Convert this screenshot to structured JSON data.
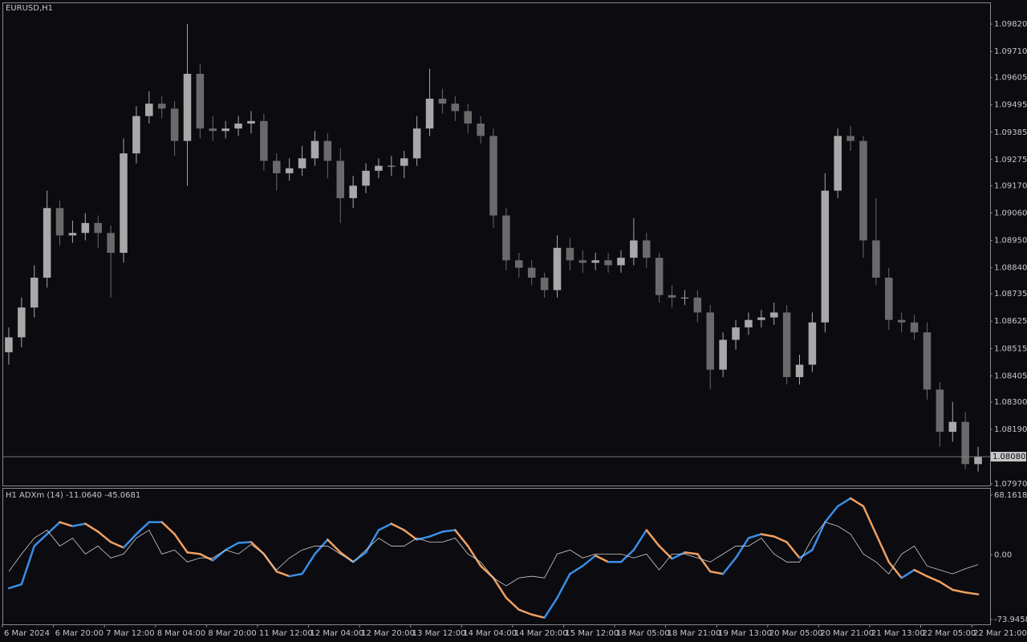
{
  "chart_data": [
    {
      "type": "candlestick",
      "title": "EURUSD,H1",
      "categories": [
        "6 Mar 2024",
        null,
        null,
        null,
        "6 Mar 20:00",
        null,
        null,
        null,
        "7 Mar 12:00",
        null,
        null,
        null,
        "8 Mar 04:00",
        null,
        null,
        null,
        "8 Mar 20:00",
        null,
        null,
        null,
        "11 Mar 12:00",
        null,
        null,
        null,
        "12 Mar 04:00",
        null,
        null,
        null,
        "12 Mar 20:00",
        null,
        null,
        null,
        "13 Mar 12:00",
        null,
        null,
        null,
        "14 Mar 04:00",
        null,
        null,
        null,
        "14 Mar 20:00",
        null,
        null,
        null,
        "15 Mar 12:00",
        null,
        null,
        null,
        "18 Mar 05:00",
        null,
        null,
        null,
        "18 Mar 21:00",
        null,
        null,
        null,
        "19 Mar 13:00",
        null,
        null,
        null,
        "20 Mar 05:00",
        null,
        null,
        null,
        "20 Mar 21:00",
        null,
        null,
        null,
        "21 Mar 13:00",
        null,
        null,
        null,
        "22 Mar 05:00",
        null,
        null,
        null,
        "22 Mar 21:00"
      ],
      "open": [
        1.085,
        1.0856,
        1.0868,
        1.088,
        1.0908,
        1.0897,
        1.0898,
        1.0902,
        1.0898,
        1.089,
        1.093,
        1.0945,
        1.095,
        1.0948,
        1.0935,
        1.0962,
        1.094,
        1.0939,
        1.094,
        1.0942,
        1.0943,
        1.0927,
        1.0922,
        1.0924,
        1.0928,
        1.0935,
        1.0927,
        1.0912,
        1.0917,
        1.0923,
        1.0925,
        1.0925,
        1.0928,
        1.094,
        1.0952,
        1.095,
        1.0947,
        1.0942,
        1.0937,
        1.0905,
        1.0887,
        1.0884,
        1.088,
        1.0875,
        1.0892,
        1.0887,
        1.0886,
        1.0887,
        1.0885,
        1.0888,
        1.0895,
        1.0888,
        1.0873,
        1.0872,
        1.0872,
        1.0866,
        1.0843,
        1.0855,
        1.086,
        1.0863,
        1.0864,
        1.0866,
        1.084,
        1.0845,
        1.0862,
        1.0915,
        1.0937,
        1.0935,
        1.0895,
        1.088,
        1.0863,
        1.0862,
        1.0858,
        1.0835,
        1.0818,
        1.0822,
        1.0805
      ],
      "high": [
        1.086,
        1.0872,
        1.0885,
        1.0915,
        1.0911,
        1.0903,
        1.0906,
        1.0905,
        1.0901,
        1.0936,
        1.0949,
        1.0955,
        1.0953,
        1.0951,
        1.0982,
        1.0966,
        1.0945,
        1.0943,
        1.0945,
        1.0947,
        1.0946,
        1.093,
        1.0928,
        1.0933,
        1.0939,
        1.0938,
        1.0932,
        1.0921,
        1.0926,
        1.0928,
        1.0929,
        1.0931,
        1.0945,
        1.0964,
        1.0956,
        1.0953,
        1.095,
        1.0945,
        1.094,
        1.0908,
        1.089,
        1.0887,
        1.0882,
        1.0897,
        1.0896,
        1.0891,
        1.089,
        1.089,
        1.0891,
        1.0904,
        1.0898,
        1.089,
        1.0877,
        1.0875,
        1.0875,
        1.0869,
        1.0858,
        1.0863,
        1.0866,
        1.0867,
        1.087,
        1.0869,
        1.0849,
        1.0866,
        1.0922,
        1.094,
        1.0941,
        1.0937,
        1.0912,
        1.0884,
        1.0866,
        1.0865,
        1.0862,
        1.0838,
        1.083,
        1.0826,
        1.0812
      ],
      "low": [
        1.0845,
        1.0852,
        1.0864,
        1.0876,
        1.0893,
        1.0894,
        1.0895,
        1.0892,
        1.0872,
        1.0886,
        1.0926,
        1.0942,
        1.0944,
        1.0929,
        1.0917,
        1.0936,
        1.0935,
        1.0936,
        1.0937,
        1.0938,
        1.0923,
        1.0915,
        1.0919,
        1.0921,
        1.0925,
        1.092,
        1.0902,
        1.0908,
        1.0914,
        1.092,
        1.0921,
        1.092,
        1.0925,
        1.0937,
        1.0946,
        1.0943,
        1.0938,
        1.0934,
        1.09,
        1.0883,
        1.088,
        1.0877,
        1.0872,
        1.0872,
        1.0883,
        1.0882,
        1.0883,
        1.0882,
        1.0882,
        1.0885,
        1.0884,
        1.087,
        1.0868,
        1.0869,
        1.0862,
        1.0835,
        1.084,
        1.0851,
        1.0857,
        1.086,
        1.0861,
        1.0837,
        1.0837,
        1.0842,
        1.0858,
        1.0912,
        1.0931,
        1.0888,
        1.0877,
        1.0859,
        1.0858,
        1.0855,
        1.0831,
        1.0812,
        1.0814,
        1.0803,
        1.0802
      ],
      "close": [
        1.0856,
        1.0868,
        1.088,
        1.0908,
        1.0897,
        1.0898,
        1.0902,
        1.0898,
        1.089,
        1.093,
        1.0945,
        1.095,
        1.0948,
        1.0935,
        1.0962,
        1.094,
        1.0939,
        1.094,
        1.0942,
        1.0943,
        1.0927,
        1.0922,
        1.0924,
        1.0928,
        1.0935,
        1.0927,
        1.0912,
        1.0917,
        1.0923,
        1.0925,
        1.0925,
        1.0928,
        1.094,
        1.0952,
        1.095,
        1.0947,
        1.0942,
        1.0937,
        1.0905,
        1.0887,
        1.0884,
        1.088,
        1.0875,
        1.0892,
        1.0887,
        1.0886,
        1.0887,
        1.0885,
        1.0888,
        1.0895,
        1.0888,
        1.0873,
        1.0872,
        1.0872,
        1.0866,
        1.0843,
        1.0855,
        1.086,
        1.0863,
        1.0864,
        1.0866,
        1.084,
        1.0845,
        1.0862,
        1.0915,
        1.0937,
        1.0935,
        1.0895,
        1.088,
        1.0863,
        1.0862,
        1.0858,
        1.0835,
        1.0818,
        1.0822,
        1.0805,
        1.0808
      ],
      "up_color": "#a8a8a8",
      "down_color": "#6a6a6a",
      "ylim": [
        1.07964,
        1.09904
      ],
      "yticks": [
        {
          "value": 1.0982,
          "label": "1.09820"
        },
        {
          "value": 1.0971,
          "label": "1.09710"
        },
        1.09605,
        1.09495,
        1.09385,
        1.09275,
        {
          "value": 1.0917,
          "label": "1.09170"
        },
        {
          "value": 1.0906,
          "label": "1.09060"
        },
        {
          "value": 1.0895,
          "label": "1.08950"
        },
        {
          "value": 1.0884,
          "label": "1.08840"
        },
        1.08735,
        1.08625,
        1.08515,
        1.08405,
        {
          "value": 1.083,
          "label": "1.08300"
        },
        {
          "value": 1.0819,
          "label": "1.08190"
        },
        {
          "value": 1.0797,
          "label": "1.07970"
        }
      ],
      "current_price": {
        "value": 1.0808,
        "label": "1.08080"
      }
    },
    {
      "type": "line",
      "title": "H1 ADXm (14) -11.0640 -45.0681",
      "series": [
        {
          "values": [
            -38.2,
            -33.6,
            10.0,
            23.6,
            37.3,
            32.7,
            35.5,
            26.4,
            14.5,
            8.2,
            23.6,
            37.3,
            37.3,
            23.6,
            2.7,
            0.9,
            -6.4,
            5.5,
            13.6,
            14.5,
            0.9,
            -19.1,
            -24.5,
            -21.8,
            0.9,
            17.3,
            2.7,
            -8.2,
            2.7,
            28.2,
            35.5,
            28.2,
            17.3,
            20.9,
            26.4,
            28.2,
            10.0,
            -12.7,
            -26.4,
            -49.1,
            -62.7,
            -68.2,
            -71.8,
            -49.1,
            -21.8,
            -12.7,
            -0.9,
            -8.2,
            -8.2,
            5.5,
            28.2,
            10.0,
            -4.5,
            2.7,
            0.9,
            -19.1,
            -21.8,
            -3.6,
            19.1,
            23.6,
            20.9,
            14.5,
            -3.6,
            5.5,
            37.3,
            55.5,
            64.5,
            55.5,
            23.6,
            -8.2,
            -26.4,
            -17.3,
            -24.5,
            -30.9,
            -40.0,
            -43.0,
            -45.1
          ],
          "up_color": "#3a8ee6",
          "down_color": "#f0a060",
          "width": 2.5
        },
        {
          "values": [
            -19.1,
            0.9,
            19.1,
            28.2,
            10.0,
            19.1,
            0.9,
            10.0,
            -3.6,
            0.9,
            19.1,
            28.2,
            0.9,
            5.5,
            -8.2,
            -3.6,
            -3.6,
            5.5,
            0.9,
            11.8,
            0.9,
            -17.3,
            -3.6,
            5.5,
            10.0,
            10.0,
            0.9,
            -8.2,
            5.5,
            19.1,
            10.0,
            10.0,
            19.1,
            14.5,
            14.5,
            19.1,
            0.9,
            -8.2,
            -26.4,
            -35.5,
            -26.4,
            -24.5,
            -26.4,
            0.9,
            5.5,
            -3.6,
            0.9,
            0.9,
            0.9,
            -3.6,
            0.9,
            -17.3,
            0.9,
            0.9,
            -3.6,
            -8.2,
            0.9,
            10.0,
            10.0,
            19.1,
            0.9,
            -8.2,
            -8.2,
            19.1,
            37.3,
            32.7,
            23.6,
            0.9,
            -8.2,
            -21.8,
            0.9,
            10.0,
            -12.7,
            -17.3,
            -21.8,
            -16.0,
            -11.1
          ],
          "color": "#d0d0d0",
          "width": 0.8
        }
      ],
      "ylim": [
        -79.41,
        75.45
      ],
      "yticks": [
        68.1618,
        {
          "value": 0,
          "label": "0.00"
        },
        -73.9458
      ]
    }
  ]
}
